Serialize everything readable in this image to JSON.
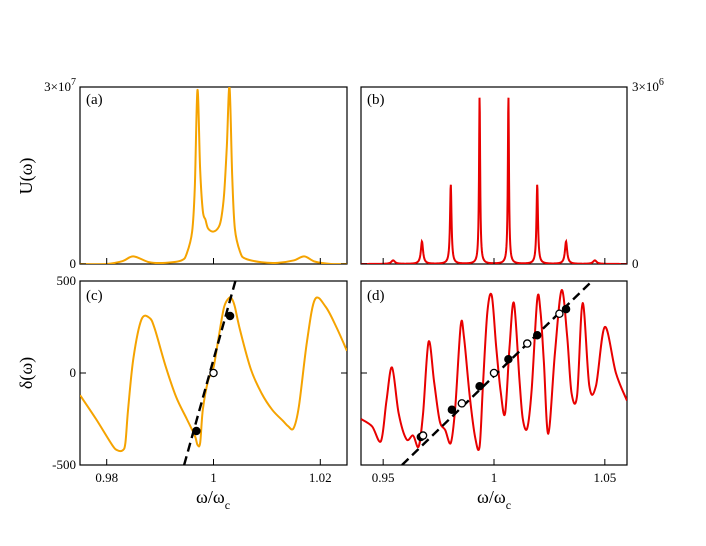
{
  "chart_data": [
    {
      "id": "a",
      "type": "line",
      "panel_label": "(a)",
      "ylabel": "U(ω)",
      "xlim": [
        0.975,
        1.025
      ],
      "ylim": [
        0,
        30000000
      ],
      "ytick_labels": [
        {
          "value": 0,
          "label": "0",
          "side": "left"
        },
        {
          "value": 30000000,
          "label": "3×10",
          "sup": "7",
          "side": "left"
        }
      ],
      "color": "#f5a300",
      "series": [
        {
          "x": [
            0.975,
            0.98,
            0.983,
            0.985,
            0.988,
            0.991,
            0.994,
            0.995,
            0.996,
            0.9965,
            0.997,
            0.9975,
            0.998,
            0.9985,
            0.999,
            1.0,
            1.001,
            1.0015,
            1.002,
            1.0025,
            1.003,
            1.0035,
            1.004,
            1.005,
            1.006,
            1.009,
            1.012,
            1.015,
            1.017,
            1.019,
            1.022,
            1.025
          ],
          "y": [
            0,
            0,
            500000,
            1300000,
            300000,
            200000,
            600000,
            1800000,
            5500000,
            13000000,
            29500000,
            16000000,
            9000000,
            7500000,
            6000000,
            5500000,
            6300000,
            8000000,
            12000000,
            20000000,
            30000000,
            15000000,
            6000000,
            2000000,
            900000,
            300000,
            200000,
            600000,
            1300000,
            400000,
            0,
            0
          ]
        }
      ]
    },
    {
      "id": "b",
      "type": "line",
      "panel_label": "(b)",
      "xlim": [
        0.94,
        1.06
      ],
      "ylim": [
        0,
        3000000
      ],
      "ytick_labels": [
        {
          "value": 0,
          "label": "0",
          "side": "right"
        },
        {
          "value": 3000000,
          "label": "3×10",
          "sup": "6",
          "side": "right"
        }
      ],
      "color": "#e80000",
      "peaks": [
        {
          "x": 0.9545,
          "h": 60000,
          "w": 0.001
        },
        {
          "x": 0.9675,
          "h": 380000,
          "w": 0.0006
        },
        {
          "x": 0.9805,
          "h": 1350000,
          "w": 0.0004
        },
        {
          "x": 0.9935,
          "h": 2850000,
          "w": 0.0003
        },
        {
          "x": 1.0065,
          "h": 2850000,
          "w": 0.0003
        },
        {
          "x": 1.0195,
          "h": 1350000,
          "w": 0.0004
        },
        {
          "x": 1.0325,
          "h": 380000,
          "w": 0.0006
        },
        {
          "x": 1.0455,
          "h": 60000,
          "w": 0.001
        }
      ]
    },
    {
      "id": "c",
      "type": "line",
      "panel_label": "(c)",
      "ylabel": "δ(ω)",
      "xlabel": "ω/ω",
      "xlabel_sub": "c",
      "xlim": [
        0.975,
        1.025
      ],
      "ylim": [
        -500,
        500
      ],
      "xticks": [
        {
          "value": 0.98,
          "label": "0.98"
        },
        {
          "value": 1.0,
          "label": "1"
        },
        {
          "value": 1.02,
          "label": "1.02"
        }
      ],
      "yticks": [
        {
          "value": -500,
          "label": "-500"
        },
        {
          "value": 0,
          "label": "0"
        },
        {
          "value": 500,
          "label": "500"
        }
      ],
      "color": "#f5a300",
      "series": [
        {
          "x": [
            0.975,
            0.978,
            0.981,
            0.982,
            0.983,
            0.9835,
            0.984,
            0.985,
            0.9865,
            0.988,
            0.989,
            0.991,
            0.993,
            0.995,
            0.9965,
            0.997,
            0.9975,
            0.998,
            0.999,
            1.0,
            1.001,
            1.002,
            1.003,
            1.0035,
            1.004,
            1.005,
            1.007,
            1.009,
            1.011,
            1.013,
            1.014,
            1.015,
            1.016,
            1.0175,
            1.019,
            1.021,
            1.023,
            1.025
          ],
          "y": [
            -120,
            -250,
            -390,
            -420,
            -420,
            -380,
            -200,
            80,
            290,
            300,
            240,
            40,
            -130,
            -250,
            -340,
            -390,
            -380,
            -200,
            -40,
            30,
            200,
            360,
            410,
            400,
            360,
            230,
            20,
            -110,
            -200,
            -260,
            -290,
            -300,
            -180,
            170,
            400,
            360,
            250,
            120
          ]
        }
      ],
      "dashed_line": {
        "x": [
          0.9945,
          1.0041
        ],
        "y": [
          -500,
          500
        ]
      },
      "markers": [
        {
          "x": 0.9968,
          "y": -315,
          "filled": true
        },
        {
          "x": 1.0,
          "y": 0,
          "filled": false
        },
        {
          "x": 1.0031,
          "y": 310,
          "filled": true
        }
      ]
    },
    {
      "id": "d",
      "type": "line",
      "panel_label": "(d)",
      "xlabel": "ω/ω",
      "xlabel_sub": "c",
      "xlim": [
        0.94,
        1.06
      ],
      "ylim": [
        -500,
        500
      ],
      "xticks": [
        {
          "value": 0.95,
          "label": "0.95"
        },
        {
          "value": 1.0,
          "label": "1"
        },
        {
          "value": 1.05,
          "label": "1.05"
        }
      ],
      "color": "#e80000",
      "series": [
        {
          "x": [
            0.94,
            0.945,
            0.949,
            0.9515,
            0.954,
            0.957,
            0.9605,
            0.9635,
            0.966,
            0.968,
            0.9705,
            0.973,
            0.9755,
            0.978,
            0.9805,
            0.9825,
            0.985,
            0.9865,
            0.989,
            0.9915,
            0.9935,
            0.995,
            0.997,
            0.999,
            1.001,
            1.003,
            1.005,
            1.007,
            1.009,
            1.0115,
            1.013,
            1.015,
            1.017,
            1.0195,
            1.021,
            1.0225,
            1.0245,
            1.0275,
            1.0305,
            1.033,
            1.035,
            1.0375,
            1.04,
            1.043,
            1.046,
            1.05,
            1.055,
            1.06
          ],
          "y": [
            -250,
            -290,
            -370,
            -150,
            30,
            -220,
            -360,
            -340,
            -400,
            -220,
            170,
            -50,
            -260,
            -310,
            -380,
            -190,
            260,
            190,
            -120,
            -350,
            -400,
            -70,
            330,
            420,
            140,
            -100,
            -220,
            140,
            380,
            -40,
            -250,
            -300,
            -90,
            400,
            330,
            60,
            -330,
            110,
            450,
            200,
            -110,
            -120,
            380,
            -70,
            -70,
            250,
            0,
            -150
          ]
        }
      ],
      "dashed_line": {
        "x": [
          0.9585,
          1.0443
        ],
        "y": [
          -500,
          500
        ]
      },
      "markers": [
        {
          "x": 0.967,
          "y": -348,
          "filled": true
        },
        {
          "x": 0.968,
          "y": -340,
          "filled": false
        },
        {
          "x": 0.981,
          "y": -200,
          "filled": true
        },
        {
          "x": 0.9855,
          "y": -165,
          "filled": false
        },
        {
          "x": 0.9935,
          "y": -72,
          "filled": true
        },
        {
          "x": 1.0,
          "y": 0,
          "filled": false
        },
        {
          "x": 1.0065,
          "y": 75,
          "filled": true
        },
        {
          "x": 1.015,
          "y": 160,
          "filled": false
        },
        {
          "x": 1.0195,
          "y": 205,
          "filled": true
        },
        {
          "x": 1.0295,
          "y": 322,
          "filled": false
        },
        {
          "x": 1.0325,
          "y": 347,
          "filled": true
        }
      ]
    }
  ]
}
